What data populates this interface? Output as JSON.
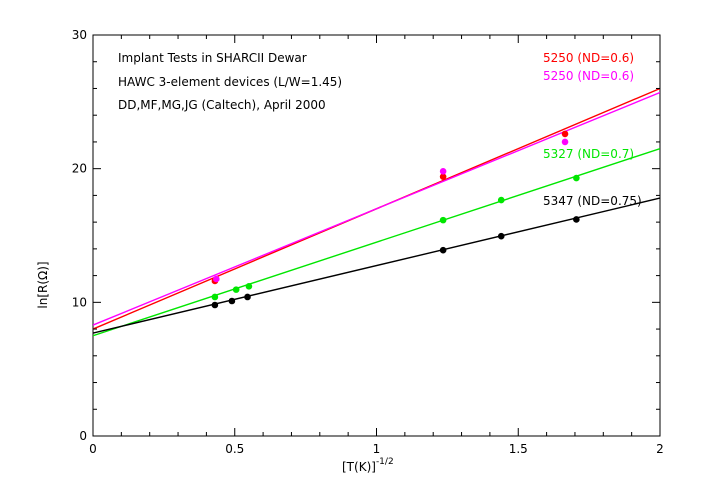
{
  "chart_data": {
    "type": "scatter",
    "title": "",
    "annotations": [
      "Implant Tests in SHARCII Dewar",
      "HAWC 3-element devices (L/W=1.45)",
      "DD,MF,MG,JG (Caltech), April 2000"
    ],
    "xlabel": "[T(K)]",
    "xlabel_exponent": "-1/2",
    "ylabel": "ln[R(Ω)]",
    "xlim": [
      0,
      2
    ],
    "ylim": [
      0,
      30
    ],
    "xticks": [
      0,
      0.5,
      1,
      1.5,
      2
    ],
    "xtick_labels": [
      "0",
      "0.5",
      "1",
      "1.5",
      "2"
    ],
    "yticks": [
      0,
      10,
      20,
      30
    ],
    "ytick_labels": [
      "0",
      "10",
      "20",
      "30"
    ],
    "grid": false,
    "series": [
      {
        "name": "5250 (ND=0.6)",
        "color": "#ff0000",
        "points": [
          [
            0.43,
            11.6
          ],
          [
            1.235,
            19.4
          ],
          [
            1.665,
            22.6
          ]
        ],
        "fit": [
          [
            0,
            8.0
          ],
          [
            2,
            26.0
          ]
        ]
      },
      {
        "name": "5250 (ND=0.6)",
        "color": "#ff00ff",
        "points": [
          [
            0.435,
            11.75
          ],
          [
            1.235,
            19.8
          ],
          [
            1.665,
            22.0
          ]
        ],
        "fit": [
          [
            0,
            8.3
          ],
          [
            2,
            25.7
          ]
        ]
      },
      {
        "name": "5327 (ND=0.7)",
        "color": "#00e600",
        "points": [
          [
            0.43,
            10.4
          ],
          [
            0.505,
            10.95
          ],
          [
            0.55,
            11.2
          ],
          [
            1.235,
            16.15
          ],
          [
            1.44,
            17.65
          ],
          [
            1.705,
            19.3
          ]
        ],
        "fit": [
          [
            0,
            7.5
          ],
          [
            2,
            21.5
          ]
        ]
      },
      {
        "name": "5347 (ND=0.75)",
        "color": "#000000",
        "points": [
          [
            0.43,
            9.8
          ],
          [
            0.49,
            10.1
          ],
          [
            0.545,
            10.4
          ],
          [
            1.235,
            13.9
          ],
          [
            1.44,
            14.95
          ],
          [
            1.705,
            16.2
          ]
        ],
        "fit": [
          [
            0,
            7.7
          ],
          [
            2,
            17.8
          ]
        ]
      }
    ]
  }
}
